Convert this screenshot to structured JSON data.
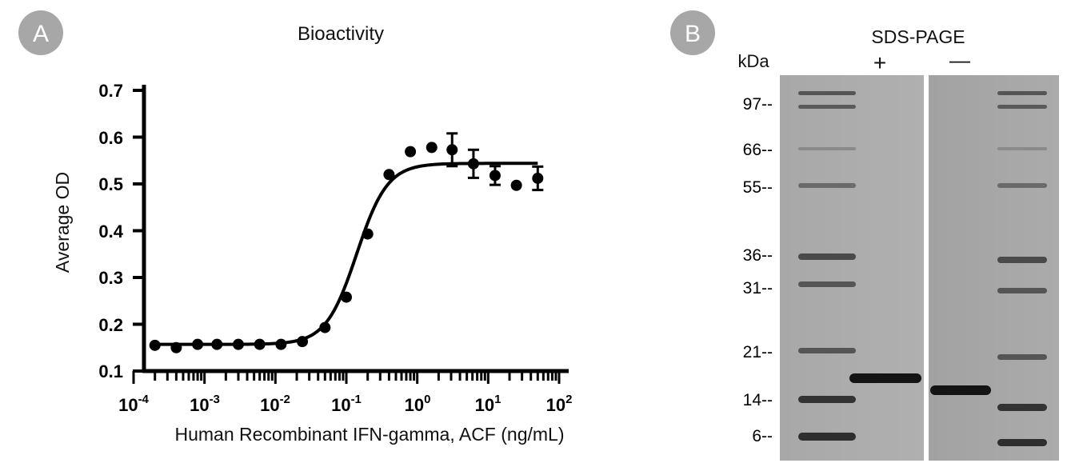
{
  "panel_a": {
    "badge": "A",
    "title": "Bioactivity",
    "ylabel": "Average OD",
    "xlabel": "Human Recombinant IFN-gamma, ACF (ng/mL)",
    "ytick_labels": [
      "0.1",
      "0.2",
      "0.3",
      "0.4",
      "0.5",
      "0.6",
      "0.7"
    ],
    "xtick_labels": [
      {
        "base": "10",
        "exp": "-4"
      },
      {
        "base": "10",
        "exp": "-3"
      },
      {
        "base": "10",
        "exp": "-2"
      },
      {
        "base": "10",
        "exp": "-1"
      },
      {
        "base": "10",
        "exp": "0"
      },
      {
        "base": "10",
        "exp": "1"
      },
      {
        "base": "10",
        "exp": "2"
      }
    ]
  },
  "panel_b": {
    "badge": "B",
    "title": "SDS-PAGE",
    "kda_label": "kDa",
    "lane_plus": "+",
    "lane_minus": "—",
    "markers": [
      {
        "label": "97--",
        "kda": 97
      },
      {
        "label": "66--",
        "kda": 66
      },
      {
        "label": "55--",
        "kda": 55
      },
      {
        "label": "36--",
        "kda": 36
      },
      {
        "label": "31--",
        "kda": 31
      },
      {
        "label": "21--",
        "kda": 21
      },
      {
        "label": "14--",
        "kda": 14
      },
      {
        "label": "6--",
        "kda": 6
      }
    ]
  },
  "chart_data": [
    {
      "type": "scatter",
      "title": "Bioactivity",
      "xlabel": "Human Recombinant IFN-gamma, ACF (ng/mL)",
      "ylabel": "Average OD",
      "xscale": "log",
      "xlim": [
        0.0001,
        100
      ],
      "ylim": [
        0.1,
        0.7
      ],
      "grid": false,
      "series": [
        {
          "points": [
            {
              "x": 0.0002,
              "y": 0.155
            },
            {
              "x": 0.0004,
              "y": 0.15
            },
            {
              "x": 0.0008,
              "y": 0.157
            },
            {
              "x": 0.0015,
              "y": 0.157
            },
            {
              "x": 0.003,
              "y": 0.157
            },
            {
              "x": 0.006,
              "y": 0.157
            },
            {
              "x": 0.012,
              "y": 0.157
            },
            {
              "x": 0.024,
              "y": 0.163
            },
            {
              "x": 0.05,
              "y": 0.193
            },
            {
              "x": 0.1,
              "y": 0.258
            },
            {
              "x": 0.2,
              "y": 0.393
            },
            {
              "x": 0.4,
              "y": 0.52
            },
            {
              "x": 0.8,
              "y": 0.569
            },
            {
              "x": 1.6,
              "y": 0.578
            },
            {
              "x": 3.1,
              "y": 0.573,
              "err": 0.035
            },
            {
              "x": 6.2,
              "y": 0.543,
              "err": 0.03
            },
            {
              "x": 12.5,
              "y": 0.518,
              "err": 0.02
            },
            {
              "x": 25,
              "y": 0.497
            },
            {
              "x": 50,
              "y": 0.512,
              "err": 0.025
            }
          ]
        }
      ],
      "fit": {
        "bottom": 0.157,
        "top": 0.544,
        "ec50": 0.14,
        "hill": 2.0
      }
    }
  ]
}
